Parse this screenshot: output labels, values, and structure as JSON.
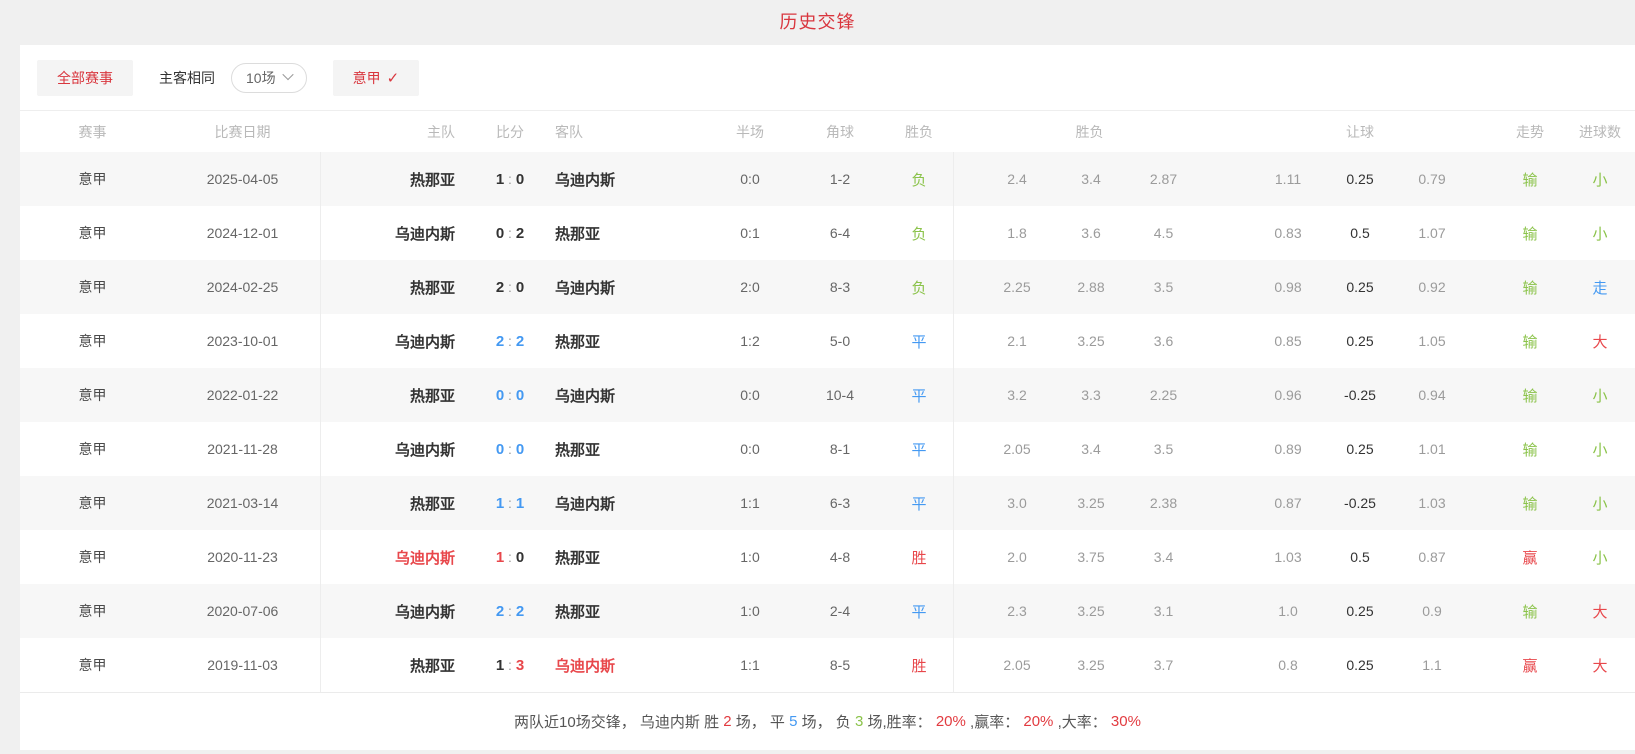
{
  "page": {
    "title": "历史交锋"
  },
  "filters": {
    "all_matches": "全部赛事",
    "same_home_away": "主客相同",
    "match_count": "10场",
    "league": "意甲",
    "check": "✓"
  },
  "colors": {
    "accent_red": "#d9363e",
    "status_red": "#e8474b",
    "green": "#8bc34a",
    "blue": "#4499f2"
  },
  "table": {
    "headers": {
      "league": "赛事",
      "date": "比赛日期",
      "home": "主队",
      "score": "比分",
      "away": "客队",
      "half": "半场",
      "corner": "角球",
      "result": "胜负",
      "odds": "胜负",
      "handicap": "让球",
      "trend": "走势",
      "goals": "进球数"
    },
    "rows": [
      {
        "league": "意甲",
        "date": "2025-04-05",
        "home": "热那亚",
        "home_c": "dark",
        "score_home": "1",
        "sh_c": "dark",
        "score_away": "0",
        "sa_c": "dark",
        "away": "乌迪内斯",
        "away_c": "dark",
        "half": "0:0",
        "corner": "1-2",
        "result": "负",
        "result_c": "green",
        "odds": [
          "2.4",
          "3.4",
          "2.87"
        ],
        "handicap": [
          "1.11",
          "0.25",
          "0.79"
        ],
        "trend": "输",
        "trend_c": "green",
        "goals": "小",
        "goals_c": "green"
      },
      {
        "league": "意甲",
        "date": "2024-12-01",
        "home": "乌迪内斯",
        "home_c": "dark",
        "score_home": "0",
        "sh_c": "dark",
        "score_away": "2",
        "sa_c": "dark",
        "away": "热那亚",
        "away_c": "dark",
        "half": "0:1",
        "corner": "6-4",
        "result": "负",
        "result_c": "green",
        "odds": [
          "1.8",
          "3.6",
          "4.5"
        ],
        "handicap": [
          "0.83",
          "0.5",
          "1.07"
        ],
        "trend": "输",
        "trend_c": "green",
        "goals": "小",
        "goals_c": "green"
      },
      {
        "league": "意甲",
        "date": "2024-02-25",
        "home": "热那亚",
        "home_c": "dark",
        "score_home": "2",
        "sh_c": "dark",
        "score_away": "0",
        "sa_c": "dark",
        "away": "乌迪内斯",
        "away_c": "dark",
        "half": "2:0",
        "corner": "8-3",
        "result": "负",
        "result_c": "green",
        "odds": [
          "2.25",
          "2.88",
          "3.5"
        ],
        "handicap": [
          "0.98",
          "0.25",
          "0.92"
        ],
        "trend": "输",
        "trend_c": "green",
        "goals": "走",
        "goals_c": "blue"
      },
      {
        "league": "意甲",
        "date": "2023-10-01",
        "home": "乌迪内斯",
        "home_c": "dark",
        "score_home": "2",
        "sh_c": "blue",
        "score_away": "2",
        "sa_c": "blue",
        "away": "热那亚",
        "away_c": "dark",
        "half": "1:2",
        "corner": "5-0",
        "result": "平",
        "result_c": "blue",
        "odds": [
          "2.1",
          "3.25",
          "3.6"
        ],
        "handicap": [
          "0.85",
          "0.25",
          "1.05"
        ],
        "trend": "输",
        "trend_c": "green",
        "goals": "大",
        "goals_c": "red"
      },
      {
        "league": "意甲",
        "date": "2022-01-22",
        "home": "热那亚",
        "home_c": "dark",
        "score_home": "0",
        "sh_c": "blue",
        "score_away": "0",
        "sa_c": "blue",
        "away": "乌迪内斯",
        "away_c": "dark",
        "half": "0:0",
        "corner": "10-4",
        "result": "平",
        "result_c": "blue",
        "odds": [
          "3.2",
          "3.3",
          "2.25"
        ],
        "handicap": [
          "0.96",
          "-0.25",
          "0.94"
        ],
        "trend": "输",
        "trend_c": "green",
        "goals": "小",
        "goals_c": "green"
      },
      {
        "league": "意甲",
        "date": "2021-11-28",
        "home": "乌迪内斯",
        "home_c": "dark",
        "score_home": "0",
        "sh_c": "blue",
        "score_away": "0",
        "sa_c": "blue",
        "away": "热那亚",
        "away_c": "dark",
        "half": "0:0",
        "corner": "8-1",
        "result": "平",
        "result_c": "blue",
        "odds": [
          "2.05",
          "3.4",
          "3.5"
        ],
        "handicap": [
          "0.89",
          "0.25",
          "1.01"
        ],
        "trend": "输",
        "trend_c": "green",
        "goals": "小",
        "goals_c": "green"
      },
      {
        "league": "意甲",
        "date": "2021-03-14",
        "home": "热那亚",
        "home_c": "dark",
        "score_home": "1",
        "sh_c": "blue",
        "score_away": "1",
        "sa_c": "blue",
        "away": "乌迪内斯",
        "away_c": "dark",
        "half": "1:1",
        "corner": "6-3",
        "result": "平",
        "result_c": "blue",
        "odds": [
          "3.0",
          "3.25",
          "2.38"
        ],
        "handicap": [
          "0.87",
          "-0.25",
          "1.03"
        ],
        "trend": "输",
        "trend_c": "green",
        "goals": "小",
        "goals_c": "green"
      },
      {
        "league": "意甲",
        "date": "2020-11-23",
        "home": "乌迪内斯",
        "home_c": "red",
        "score_home": "1",
        "sh_c": "red",
        "score_away": "0",
        "sa_c": "dark",
        "away": "热那亚",
        "away_c": "dark",
        "half": "1:0",
        "corner": "4-8",
        "result": "胜",
        "result_c": "red",
        "odds": [
          "2.0",
          "3.75",
          "3.4"
        ],
        "handicap": [
          "1.03",
          "0.5",
          "0.87"
        ],
        "trend": "赢",
        "trend_c": "red",
        "goals": "小",
        "goals_c": "green"
      },
      {
        "league": "意甲",
        "date": "2020-07-06",
        "home": "乌迪内斯",
        "home_c": "dark",
        "score_home": "2",
        "sh_c": "blue",
        "score_away": "2",
        "sa_c": "blue",
        "away": "热那亚",
        "away_c": "dark",
        "half": "1:0",
        "corner": "2-4",
        "result": "平",
        "result_c": "blue",
        "odds": [
          "2.3",
          "3.25",
          "3.1"
        ],
        "handicap": [
          "1.0",
          "0.25",
          "0.9"
        ],
        "trend": "输",
        "trend_c": "green",
        "goals": "大",
        "goals_c": "red"
      },
      {
        "league": "意甲",
        "date": "2019-11-03",
        "home": "热那亚",
        "home_c": "dark",
        "score_home": "1",
        "sh_c": "dark",
        "score_away": "3",
        "sa_c": "red",
        "away": "乌迪内斯",
        "away_c": "red",
        "half": "1:1",
        "corner": "8-5",
        "result": "胜",
        "result_c": "red",
        "odds": [
          "2.05",
          "3.25",
          "3.7"
        ],
        "handicap": [
          "0.8",
          "0.25",
          "1.1"
        ],
        "trend": "赢",
        "trend_c": "red",
        "goals": "大",
        "goals_c": "red"
      }
    ]
  },
  "summary": {
    "segments": [
      {
        "t": "两队近10场交锋， 乌迪内斯 胜 ",
        "c": "dark"
      },
      {
        "t": "2",
        "c": "red"
      },
      {
        "t": " 场， 平 ",
        "c": "dark"
      },
      {
        "t": "5",
        "c": "blue"
      },
      {
        "t": " 场， 负 ",
        "c": "dark"
      },
      {
        "t": "3",
        "c": "green"
      },
      {
        "t": " 场,胜率： ",
        "c": "dark"
      },
      {
        "t": "20%",
        "c": "red"
      },
      {
        "t": " ,赢率： ",
        "c": "dark"
      },
      {
        "t": "20%",
        "c": "red"
      },
      {
        "t": " ,大率： ",
        "c": "dark"
      },
      {
        "t": "30%",
        "c": "red"
      }
    ]
  }
}
